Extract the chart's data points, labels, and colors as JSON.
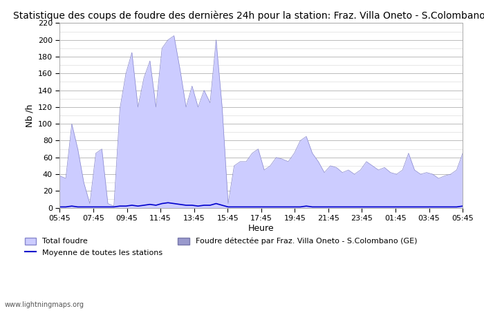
{
  "title": "Statistique des coups de foudre des dernières 24h pour la station: Fraz. Villa Oneto - S.Colombano (GE)",
  "xlabel": "Heure",
  "ylabel": "Nb /h",
  "watermark": "www.lightningmaps.org",
  "yticks": [
    0,
    20,
    40,
    60,
    80,
    100,
    120,
    140,
    160,
    180,
    200,
    220
  ],
  "xtick_labels": [
    "05:45",
    "07:45",
    "09:45",
    "11:45",
    "13:45",
    "15:45",
    "17:45",
    "19:45",
    "21:45",
    "23:45",
    "01:45",
    "03:45",
    "05:45"
  ],
  "ylim": [
    0,
    220
  ],
  "fill_color": "#ccccff",
  "fill_edge_color": "#8888cc",
  "line_color": "#0000cc",
  "legend1_label": "Total foudre",
  "legend2_label": "Moyenne de toutes les stations",
  "legend3_label": "Foudre détectée par Fraz. Villa Oneto - S.Colombano (GE)",
  "title_fontsize": 10,
  "axis_fontsize": 9,
  "tick_fontsize": 8,
  "total_foudre": [
    38,
    35,
    100,
    70,
    30,
    5,
    65,
    70,
    5,
    2,
    118,
    160,
    185,
    120,
    155,
    175,
    120,
    190,
    200,
    205,
    165,
    120,
    145,
    120,
    140,
    125,
    200,
    120,
    5,
    50,
    55,
    55,
    65,
    70,
    45,
    50,
    60,
    58,
    55,
    65,
    80,
    85,
    65,
    55,
    42,
    50,
    48,
    42,
    45,
    40,
    45,
    55,
    50,
    45,
    48,
    42,
    40,
    45,
    65,
    45,
    40,
    42,
    40,
    35,
    38,
    40,
    45,
    65
  ],
  "moyenne": [
    1,
    1,
    2,
    1,
    1,
    1,
    1,
    1,
    1,
    1,
    2,
    2,
    3,
    2,
    3,
    4,
    3,
    5,
    6,
    5,
    4,
    3,
    3,
    2,
    3,
    3,
    5,
    3,
    1,
    1,
    1,
    1,
    1,
    1,
    1,
    1,
    1,
    1,
    1,
    1,
    1,
    2,
    1,
    1,
    1,
    1,
    1,
    1,
    1,
    1,
    1,
    1,
    1,
    1,
    1,
    1,
    1,
    1,
    1,
    1,
    1,
    1,
    1,
    1,
    1,
    1,
    1,
    2
  ]
}
